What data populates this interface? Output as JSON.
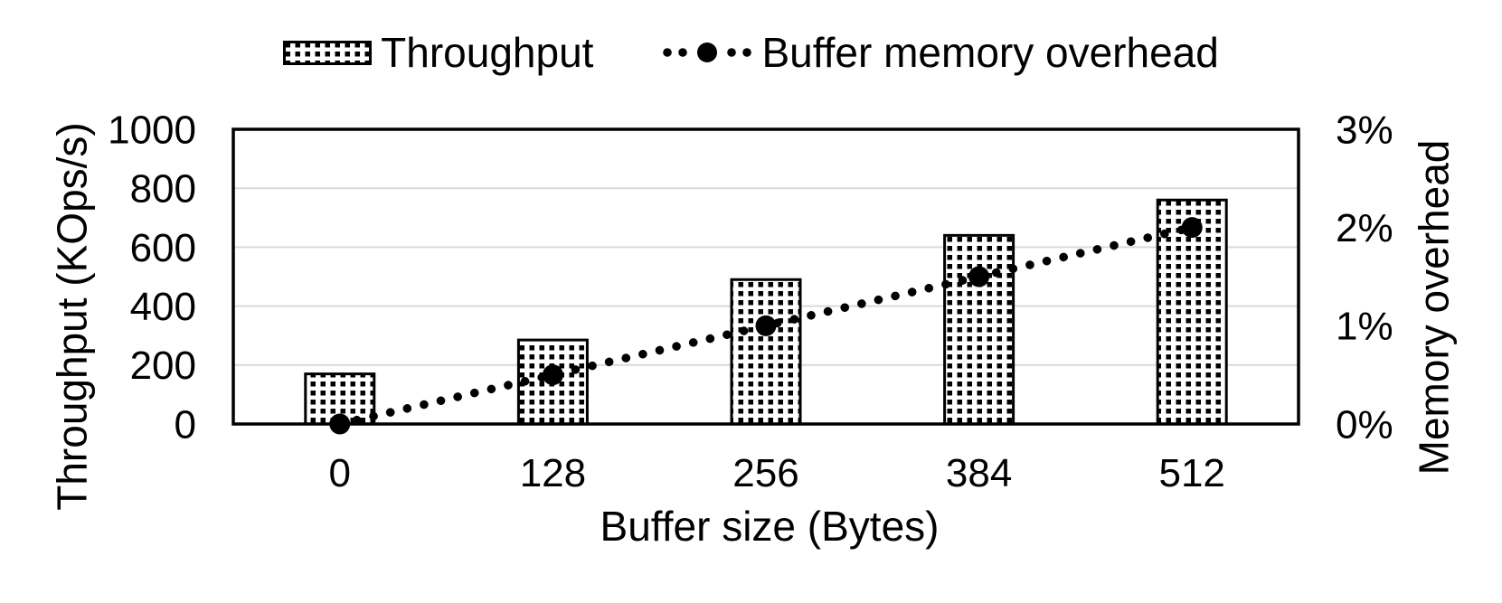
{
  "colors": {
    "foreground": "#000000",
    "background": "#ffffff",
    "gridline": "#d9d9d9"
  },
  "chart_data": {
    "type": "combo-bar-line",
    "categories": [
      "0",
      "128",
      "256",
      "384",
      "512"
    ],
    "xlabel": "Buffer size (Bytes)",
    "series": [
      {
        "name": "Throughput",
        "type": "bar",
        "axis": "left",
        "style": "white fill with black dotted-square pattern, black border",
        "values": [
          170,
          285,
          490,
          640,
          760
        ]
      },
      {
        "name": "Buffer memory overhead",
        "type": "line",
        "axis": "right",
        "style": "black dotted line with large round black markers",
        "values": [
          0,
          0.5,
          1,
          1.5,
          2
        ],
        "unit": "%"
      }
    ],
    "left_axis": {
      "label": "Throughput (KOps/s)",
      "min": 0,
      "max": 1000,
      "step": 200,
      "tick_labels": [
        "0",
        "200",
        "400",
        "600",
        "800",
        "1000"
      ]
    },
    "right_axis": {
      "label": "Memory overhead",
      "min": 0,
      "max": 3,
      "step": 1,
      "tick_labels": [
        "0%",
        "1%",
        "2%",
        "3%"
      ]
    },
    "grid": true,
    "legend_position": "top"
  }
}
